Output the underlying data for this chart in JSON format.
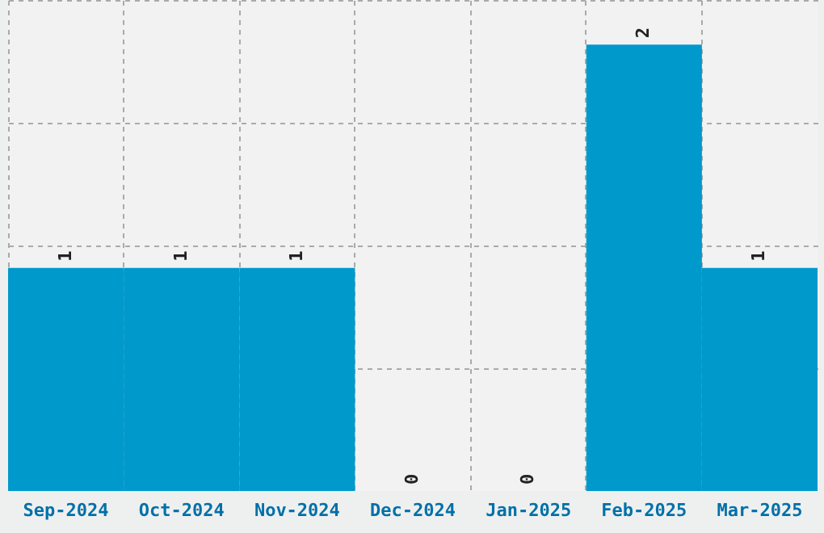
{
  "chart_data": {
    "type": "bar",
    "categories": [
      "Sep-2024",
      "Oct-2024",
      "Nov-2024",
      "Dec-2024",
      "Jan-2025",
      "Feb-2025",
      "Mar-2025"
    ],
    "values": [
      1,
      1,
      1,
      0,
      0,
      2,
      1
    ],
    "color": "#0099cc",
    "data_labels": true,
    "grid": true,
    "tick_labels": "x",
    "ylim": [
      0,
      2.2
    ],
    "yticks": [
      {
        "value": 0.55,
        "label": null
      },
      {
        "value": 1.1,
        "label": null
      },
      {
        "value": 1.65,
        "label": null
      },
      {
        "value": 2.2,
        "label": null
      }
    ]
  }
}
